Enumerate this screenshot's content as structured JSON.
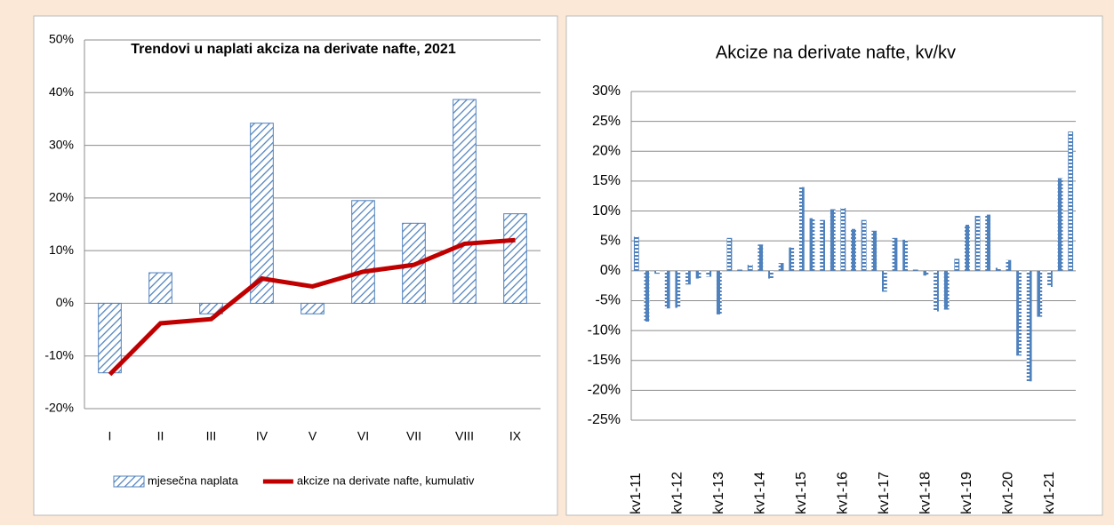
{
  "chart_data": [
    {
      "type": "combo",
      "title": "Trendovi u naplati akciza na derivate nafte, 2021",
      "categories": [
        "I",
        "II",
        "III",
        "IV",
        "V",
        "VI",
        "VII",
        "VIII",
        "IX"
      ],
      "series": [
        {
          "name": "mjesečna naplata",
          "type": "bar",
          "color": "#4f81bd",
          "values": [
            -13.2,
            5.8,
            -2,
            34.2,
            -2,
            19.5,
            15.2,
            38.7,
            17
          ]
        },
        {
          "name": "akcize na derivate nafte, kumulativ",
          "type": "line",
          "color": "#c00000",
          "values": [
            -13.5,
            -3.8,
            -3,
            4.7,
            3.2,
            6,
            7.3,
            11.3,
            12
          ]
        }
      ],
      "ylim": [
        -20,
        50
      ],
      "yticks": [
        {
          "value": -20,
          "label": "-20%"
        },
        {
          "value": -10,
          "label": "-10%"
        },
        {
          "value": 0,
          "label": "0%"
        },
        {
          "value": 10,
          "label": "10%"
        },
        {
          "value": 20,
          "label": "20%"
        },
        {
          "value": 30,
          "label": "30%"
        },
        {
          "value": 40,
          "label": "40%"
        },
        {
          "value": 50,
          "label": "50%"
        }
      ],
      "grid": true,
      "legend": "bottom"
    },
    {
      "type": "bar",
      "title": "Akcize na derivate nafte, kv/kv",
      "categories": [
        "kv1-11",
        null,
        null,
        null,
        "kv1-12",
        null,
        null,
        null,
        "kv1-13",
        null,
        null,
        null,
        "kv1-14",
        null,
        null,
        null,
        "kv1-15",
        null,
        null,
        null,
        "kv1-16",
        null,
        null,
        null,
        "kv1-17",
        null,
        null,
        null,
        "kv1-18",
        null,
        null,
        null,
        "kv1-19",
        null,
        null,
        null,
        "kv1-20",
        null,
        null,
        null,
        "kv1-21",
        null,
        null
      ],
      "series": [
        {
          "color": "#4f81bd",
          "values": [
            5.7,
            -8.5,
            -0.5,
            -6.3,
            -6.2,
            -2.3,
            -1.3,
            -1.0,
            -7.3,
            5.5,
            0.2,
            1.0,
            4.4,
            -1.3,
            1.3,
            3.9,
            14.0,
            8.8,
            8.5,
            10.3,
            10.5,
            7.0,
            8.5,
            6.7,
            -3.5,
            5.5,
            5.2,
            0.2,
            -0.8,
            -6.8,
            -6.5,
            2.0,
            7.7,
            9.2,
            9.4,
            0.5,
            1.8,
            -14.2,
            -18.5,
            -7.7,
            -2.7,
            15.5,
            23.3
          ]
        }
      ],
      "ylim": [
        -25,
        30
      ],
      "yticks": [
        {
          "value": -25,
          "label": "-25%"
        },
        {
          "value": -20,
          "label": "-20%"
        },
        {
          "value": -15,
          "label": "-15%"
        },
        {
          "value": -10,
          "label": "-10%"
        },
        {
          "value": -5,
          "label": "-5%"
        },
        {
          "value": 0,
          "label": "0%"
        },
        {
          "value": 5,
          "label": "5%"
        },
        {
          "value": 10,
          "label": "10%"
        },
        {
          "value": 15,
          "label": "15%"
        },
        {
          "value": 20,
          "label": "20%"
        },
        {
          "value": 25,
          "label": "25%"
        },
        {
          "value": 30,
          "label": "30%"
        }
      ],
      "grid": true
    }
  ]
}
